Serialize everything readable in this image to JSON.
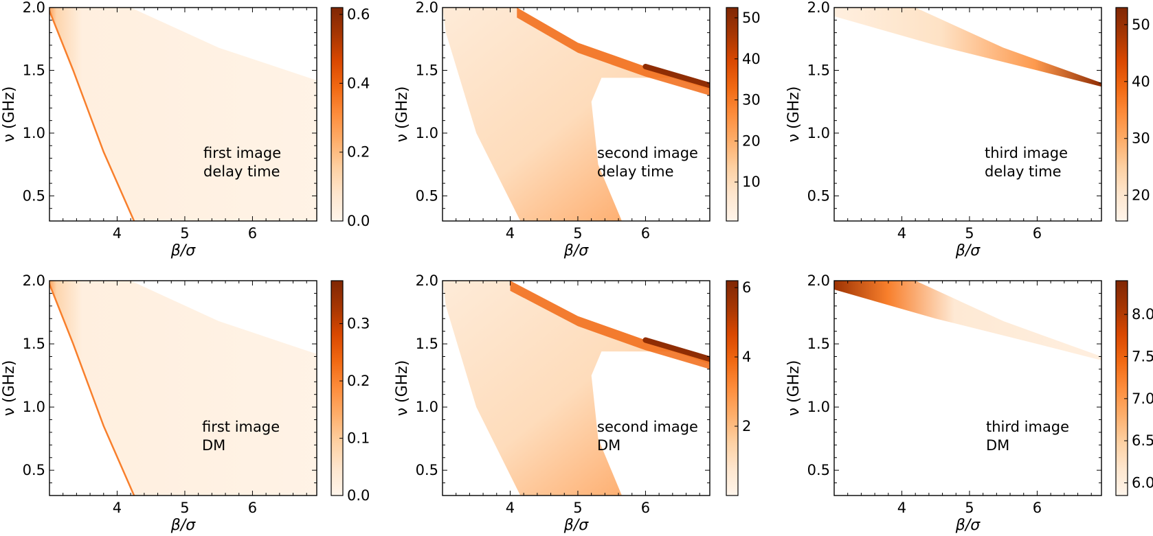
{
  "figure": {
    "colormap": [
      "#fff5eb",
      "#fee6ce",
      "#fdd0a2",
      "#fdae6b",
      "#fd8d3c",
      "#f16913",
      "#d94801",
      "#a63603",
      "#7f2704"
    ],
    "axis_color": "#000000",
    "background": "#ffffff"
  },
  "chart_data": [
    {
      "type": "heatmap",
      "panel": "first-image-delay-time",
      "xlabel": "β/σ",
      "ylabel": "ν (GHz)",
      "xlim": [
        3.0,
        6.95
      ],
      "ylim": [
        0.3,
        2.0
      ],
      "xticks": [
        4,
        5,
        6
      ],
      "xtick_labels": [
        "4",
        "5",
        "6"
      ],
      "yticks": [
        0.5,
        1.0,
        1.5,
        2.0
      ],
      "ytick_labels": [
        "0.5",
        "1.0",
        "1.5",
        "2.0"
      ],
      "annotation": [
        "first image",
        "delay time"
      ],
      "colorbar": {
        "min": 0.0,
        "max": 0.62,
        "ticks": [
          0.0,
          0.2,
          0.4,
          0.6
        ],
        "tick_labels": [
          "0.0",
          "0.2",
          "0.4",
          "0.6"
        ]
      },
      "region": {
        "shape": "band",
        "lower_boundary_x": [
          [
            2.98,
            2.0
          ],
          [
            3.35,
            1.5
          ],
          [
            3.8,
            0.85
          ],
          [
            4.25,
            0.3
          ]
        ],
        "upper_boundary_x": [
          [
            4.2,
            2.0
          ],
          [
            5.5,
            1.68
          ],
          [
            6.95,
            1.42
          ]
        ]
      },
      "peak_value": 0.62
    },
    {
      "type": "heatmap",
      "panel": "second-image-delay-time",
      "xlabel": "β/σ",
      "ylabel": "ν (GHz)",
      "xlim": [
        3.0,
        6.95
      ],
      "ylim": [
        0.3,
        2.0
      ],
      "xticks": [
        4,
        5,
        6
      ],
      "xtick_labels": [
        "4",
        "5",
        "6"
      ],
      "yticks": [
        0.5,
        1.0,
        1.5,
        2.0
      ],
      "ytick_labels": [
        "0.5",
        "1.0",
        "1.5",
        "2.0"
      ],
      "annotation": [
        "second image",
        "delay time"
      ],
      "colorbar": {
        "min": 0.5,
        "max": 52.5,
        "ticks": [
          10,
          20,
          30,
          40,
          50
        ],
        "tick_labels": [
          "10",
          "20",
          "30",
          "40",
          "50"
        ]
      },
      "region": {
        "shape": "band-with-notch",
        "ridge": [
          [
            4.1,
            2.0
          ],
          [
            5.0,
            1.72
          ],
          [
            6.0,
            1.53
          ],
          [
            6.95,
            1.38
          ]
        ]
      },
      "peak_value": 52
    },
    {
      "type": "heatmap",
      "panel": "third-image-delay-time",
      "xlabel": "β/σ",
      "ylabel": "ν (GHz)",
      "xlim": [
        3.0,
        6.95
      ],
      "ylim": [
        0.3,
        2.0
      ],
      "xticks": [
        4,
        5,
        6
      ],
      "xtick_labels": [
        "4",
        "5",
        "6"
      ],
      "yticks": [
        0.5,
        1.0,
        1.5,
        2.0
      ],
      "ytick_labels": [
        "0.5",
        "1.0",
        "1.5",
        "2.0"
      ],
      "annotation": [
        "third image",
        "delay time"
      ],
      "colorbar": {
        "min": 15.5,
        "max": 53,
        "ticks": [
          20,
          30,
          40,
          50
        ],
        "tick_labels": [
          "20",
          "30",
          "40",
          "50"
        ]
      },
      "region": {
        "shape": "thin-band",
        "upper_edge": [
          [
            3.0,
            2.0
          ],
          [
            4.2,
            2.0
          ],
          [
            5.5,
            1.68
          ],
          [
            6.95,
            1.4
          ]
        ],
        "lower_edge": [
          [
            3.0,
            1.93
          ],
          [
            4.5,
            1.7
          ],
          [
            6.0,
            1.5
          ],
          [
            6.95,
            1.37
          ]
        ]
      },
      "peak_value": 52
    },
    {
      "type": "heatmap",
      "panel": "first-image-dm",
      "xlabel": "β/σ",
      "ylabel": "ν (GHz)",
      "xlim": [
        3.0,
        6.95
      ],
      "ylim": [
        0.3,
        2.0
      ],
      "xticks": [
        4,
        5,
        6
      ],
      "xtick_labels": [
        "4",
        "5",
        "6"
      ],
      "yticks": [
        0.5,
        1.0,
        1.5,
        2.0
      ],
      "ytick_labels": [
        "0.5",
        "1.0",
        "1.5",
        "2.0"
      ],
      "annotation": [
        "first image",
        "DM"
      ],
      "colorbar": {
        "min": 0.0,
        "max": 0.375,
        "ticks": [
          0.0,
          0.1,
          0.2,
          0.3
        ],
        "tick_labels": [
          "0.0",
          "0.1",
          "0.2",
          "0.3"
        ]
      },
      "region": {
        "shape": "band",
        "lower_boundary_x": [
          [
            2.98,
            2.0
          ],
          [
            3.35,
            1.5
          ],
          [
            3.8,
            0.85
          ],
          [
            4.25,
            0.3
          ]
        ],
        "upper_boundary_x": [
          [
            4.2,
            2.0
          ],
          [
            5.5,
            1.68
          ],
          [
            6.95,
            1.42
          ]
        ]
      },
      "peak_value": 0.37
    },
    {
      "type": "heatmap",
      "panel": "second-image-dm",
      "xlabel": "β/σ",
      "ylabel": "ν (GHz)",
      "xlim": [
        3.0,
        6.95
      ],
      "ylim": [
        0.3,
        2.0
      ],
      "xticks": [
        4,
        5,
        6
      ],
      "xtick_labels": [
        "4",
        "5",
        "6"
      ],
      "yticks": [
        0.5,
        1.0,
        1.5,
        2.0
      ],
      "ytick_labels": [
        "0.5",
        "1.0",
        "1.5",
        "2.0"
      ],
      "annotation": [
        "second image",
        "DM"
      ],
      "colorbar": {
        "min": 0.0,
        "max": 6.2,
        "ticks": [
          2,
          4,
          6
        ],
        "tick_labels": [
          "2",
          "4",
          "6"
        ]
      },
      "region": {
        "shape": "band-with-notch",
        "ridge": [
          [
            4.0,
            2.0
          ],
          [
            5.0,
            1.72
          ],
          [
            6.0,
            1.53
          ],
          [
            6.95,
            1.38
          ]
        ]
      },
      "peak_value": 6.1
    },
    {
      "type": "heatmap",
      "panel": "third-image-dm",
      "xlabel": "β/σ",
      "ylabel": "ν (GHz)",
      "xlim": [
        3.0,
        6.95
      ],
      "ylim": [
        0.3,
        2.0
      ],
      "xticks": [
        4,
        5,
        6
      ],
      "xtick_labels": [
        "4",
        "5",
        "6"
      ],
      "yticks": [
        0.5,
        1.0,
        1.5,
        2.0
      ],
      "ytick_labels": [
        "0.5",
        "1.0",
        "1.5",
        "2.0"
      ],
      "annotation": [
        "third image",
        "DM"
      ],
      "colorbar": {
        "min": 5.85,
        "max": 8.4,
        "ticks": [
          6.0,
          6.5,
          7.0,
          7.5,
          8.0
        ],
        "tick_labels": [
          "6.0",
          "6.5",
          "7.0",
          "7.5",
          "8.0"
        ]
      },
      "region": {
        "shape": "thin-band",
        "upper_edge": [
          [
            3.0,
            2.0
          ],
          [
            4.2,
            2.0
          ],
          [
            5.5,
            1.68
          ],
          [
            6.95,
            1.4
          ]
        ],
        "lower_edge": [
          [
            3.0,
            1.93
          ],
          [
            4.5,
            1.7
          ],
          [
            6.0,
            1.5
          ],
          [
            6.95,
            1.37
          ]
        ]
      },
      "peak_value": 8.4
    }
  ]
}
